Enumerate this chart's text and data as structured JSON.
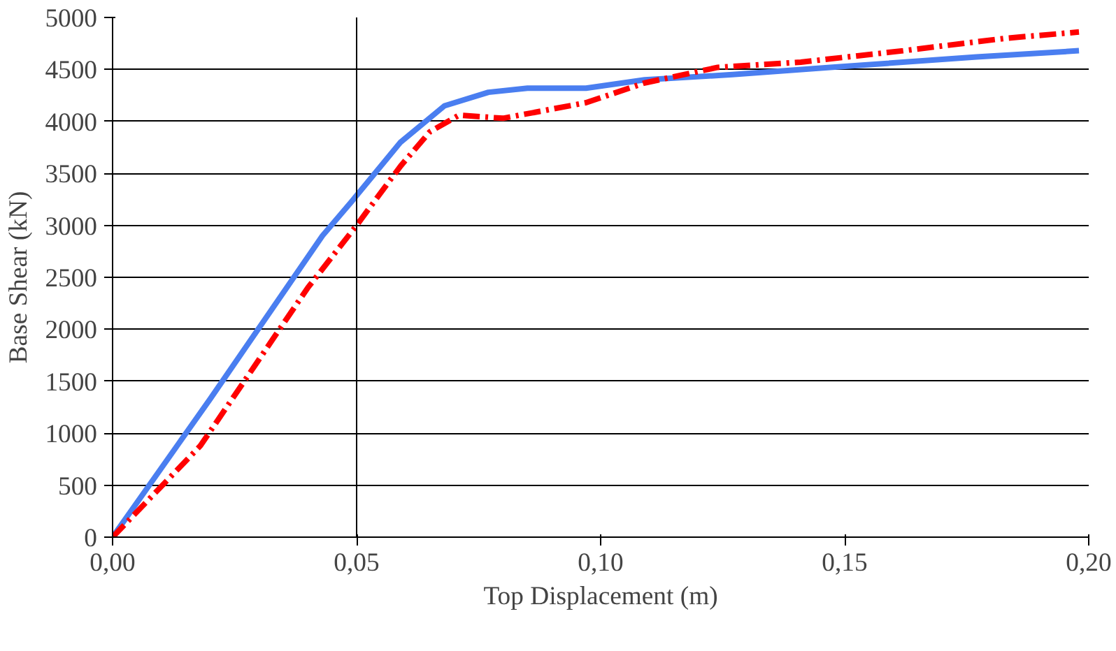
{
  "chart_data": {
    "type": "line",
    "xlabel": "Top Displacement (m)",
    "ylabel": "Base Shear (kN)",
    "xlim": [
      0,
      0.2
    ],
    "ylim": [
      0,
      5000
    ],
    "xticks": [
      {
        "value": 0,
        "label": "0,00"
      },
      {
        "value": 0.05,
        "label": "0,05"
      },
      {
        "value": 0.1,
        "label": "0,10"
      },
      {
        "value": 0.15,
        "label": "0,15"
      },
      {
        "value": 0.2,
        "label": "0,20"
      }
    ],
    "yticks": [
      0,
      500,
      1000,
      1500,
      2000,
      2500,
      3000,
      3500,
      4000,
      4500,
      5000
    ],
    "grid": "y",
    "ref_lines": [
      {
        "axis": "x",
        "value": 0.05,
        "color": "#000000"
      }
    ],
    "series": [
      {
        "color": "#4a7ef0",
        "line_style": "solid",
        "x": [
          0,
          0.02,
          0.043,
          0.049,
          0.059,
          0.068,
          0.077,
          0.085,
          0.097,
          0.109,
          0.127,
          0.147,
          0.177,
          0.198
        ],
        "values": [
          0,
          1330,
          2900,
          3230,
          3800,
          4150,
          4280,
          4320,
          4320,
          4400,
          4450,
          4520,
          4620,
          4680
        ]
      },
      {
        "color": "#ff0000",
        "line_style": "dashed",
        "x": [
          0,
          0.018,
          0.04,
          0.05,
          0.059,
          0.065,
          0.071,
          0.08,
          0.097,
          0.109,
          0.124,
          0.141,
          0.162,
          0.183,
          0.198
        ],
        "values": [
          0,
          880,
          2400,
          3000,
          3570,
          3900,
          4060,
          4030,
          4180,
          4370,
          4520,
          4570,
          4680,
          4800,
          4860
        ]
      }
    ]
  }
}
